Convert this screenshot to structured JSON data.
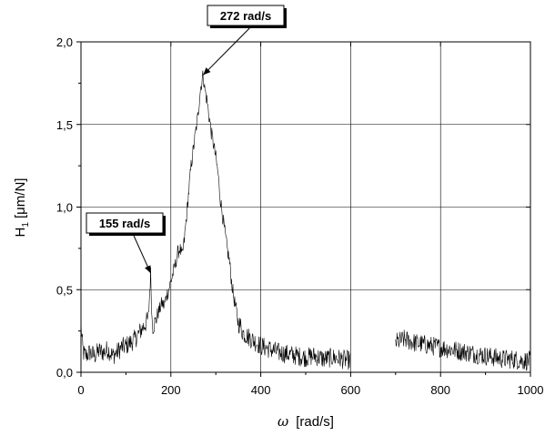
{
  "chart_data": {
    "type": "line",
    "xlabel": {
      "symbol": "ω",
      "unit": "[rad/s]"
    },
    "ylabel": {
      "base": "H",
      "subscript": "1",
      "unit": "[μm/N]"
    },
    "xlim": [
      0,
      1000
    ],
    "ylim": [
      0,
      2.0
    ],
    "x_ticks": [
      0,
      200,
      400,
      600,
      800,
      1000
    ],
    "x_tick_labels": [
      "0",
      "200",
      "400",
      "600",
      "800",
      "1000"
    ],
    "y_ticks": [
      0,
      0.5,
      1.0,
      1.5,
      2.0
    ],
    "y_tick_labels": [
      "0,0",
      "0,5",
      "1,0",
      "1,5",
      "2,0"
    ],
    "grid": true,
    "line_color": "#000000",
    "gap": [
      600,
      700
    ],
    "series": [
      {
        "x": [
          0,
          2,
          5,
          10,
          20,
          30,
          40,
          50,
          60,
          70,
          80,
          90,
          100,
          110,
          120,
          130,
          140,
          145,
          150,
          155,
          158,
          160,
          165,
          170,
          175,
          180,
          185,
          190,
          195,
          200,
          205,
          210,
          215,
          220,
          225,
          230,
          235,
          240,
          245,
          250,
          255,
          260,
          265,
          270,
          272,
          275,
          280,
          285,
          290,
          295,
          300,
          305,
          310,
          315,
          320,
          325,
          330,
          335,
          340,
          345,
          350,
          355,
          360,
          370,
          380,
          390,
          400,
          420,
          440,
          460,
          480,
          500,
          520,
          540,
          560,
          580,
          600,
          700,
          720,
          740,
          760,
          780,
          800,
          820,
          840,
          860,
          880,
          900,
          920,
          940,
          960,
          980,
          1000
        ],
        "y": [
          0.3,
          0.2,
          0.12,
          0.1,
          0.12,
          0.1,
          0.13,
          0.12,
          0.14,
          0.1,
          0.12,
          0.15,
          0.16,
          0.18,
          0.2,
          0.24,
          0.28,
          0.3,
          0.33,
          0.6,
          0.32,
          0.28,
          0.3,
          0.35,
          0.38,
          0.42,
          0.4,
          0.46,
          0.5,
          0.55,
          0.6,
          0.65,
          0.72,
          0.75,
          0.7,
          0.8,
          0.95,
          1.1,
          1.25,
          1.35,
          1.45,
          1.55,
          1.7,
          1.78,
          1.8,
          1.72,
          1.65,
          1.55,
          1.45,
          1.38,
          1.3,
          1.2,
          1.05,
          0.95,
          0.85,
          0.75,
          0.68,
          0.55,
          0.45,
          0.38,
          0.3,
          0.28,
          0.24,
          0.22,
          0.2,
          0.18,
          0.16,
          0.14,
          0.12,
          0.11,
          0.1,
          0.09,
          0.1,
          0.08,
          0.09,
          0.08,
          0.07,
          0.18,
          0.2,
          0.18,
          0.17,
          0.16,
          0.15,
          0.14,
          0.13,
          0.12,
          0.11,
          0.1,
          0.09,
          0.08,
          0.08,
          0.07,
          0.07
        ]
      }
    ],
    "annotations": [
      {
        "text": "272 rad/s",
        "x": 272,
        "y": 1.8
      },
      {
        "text": "155 rad/s",
        "x": 155,
        "y": 0.6
      }
    ]
  }
}
